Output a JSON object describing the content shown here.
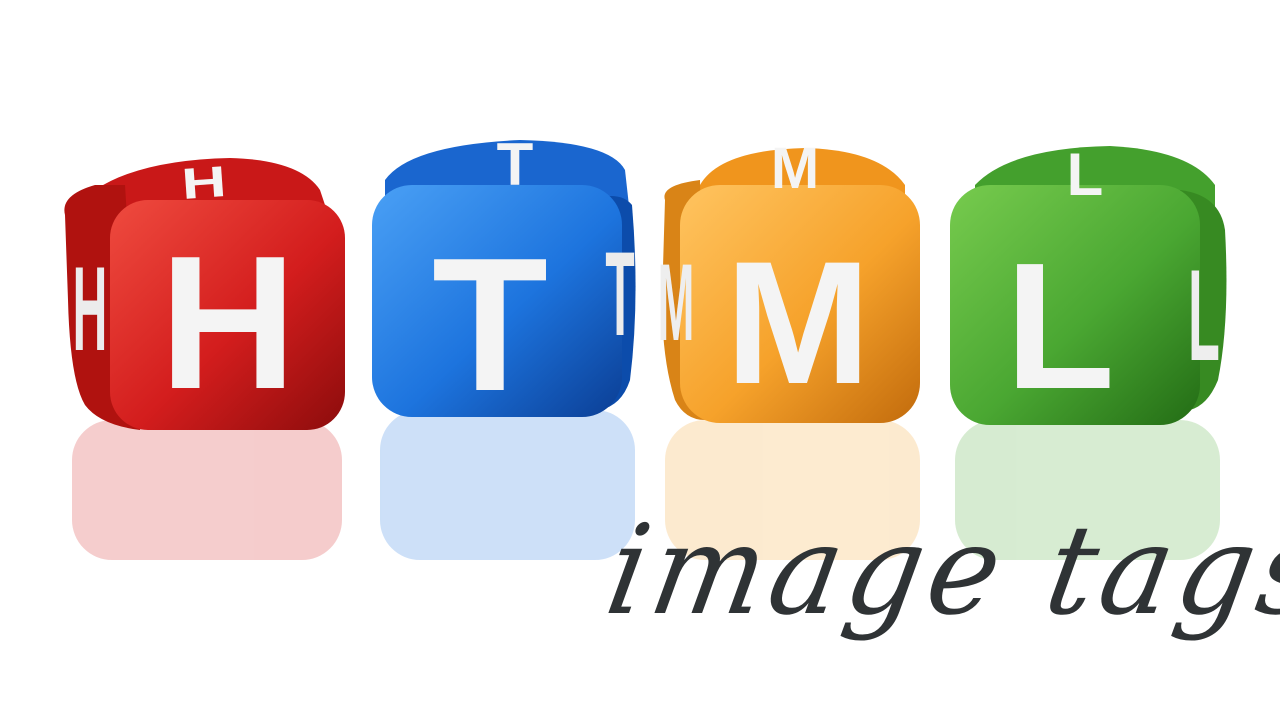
{
  "dice": [
    {
      "front": "H",
      "top": "H",
      "side": "H",
      "color": "#d31d1d",
      "dark": "#8c0c0c",
      "light": "#ef4b3f"
    },
    {
      "front": "T",
      "top": "T",
      "side": "T",
      "color": "#1d74de",
      "dark": "#0b3e94",
      "light": "#4aa0f5"
    },
    {
      "front": "M",
      "top": "M",
      "side": "M",
      "color": "#f6a22b",
      "dark": "#c26b0c",
      "light": "#ffc460"
    },
    {
      "front": "L",
      "top": "L",
      "side": "L",
      "color": "#4aa732",
      "dark": "#236c15",
      "light": "#77cb4e"
    }
  ],
  "caption": "image tags"
}
